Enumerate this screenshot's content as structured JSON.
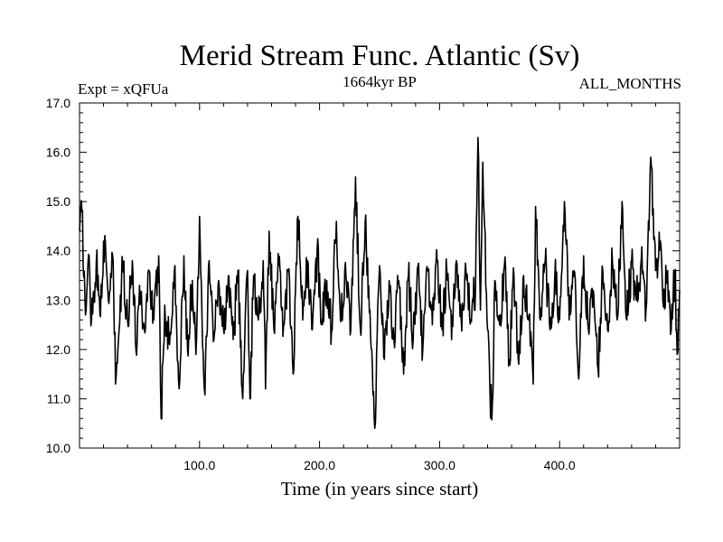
{
  "chart_data": {
    "type": "line",
    "title": "Merid Stream Func. Atlantic (Sv)",
    "subtitle_left": "Expt = xQFUa",
    "subtitle_center": "1664kyr BP",
    "subtitle_right": "ALL_MONTHS",
    "xlabel": "Time (in years since start)",
    "ylabel": "",
    "xlim": [
      0,
      500
    ],
    "ylim": [
      10.0,
      17.0
    ],
    "x_ticks": [
      100,
      200,
      300,
      400
    ],
    "x_tick_labels": [
      "100.0",
      "200.0",
      "300.0",
      "400.0"
    ],
    "y_ticks": [
      10,
      11,
      12,
      13,
      14,
      15,
      16,
      17
    ],
    "y_tick_labels": [
      "10.0",
      "11.0",
      "12.0",
      "13.0",
      "14.0",
      "15.0",
      "16.0",
      "17.0"
    ],
    "series": [
      {
        "name": "Merid Stream Func. Atlantic",
        "color": "#000000",
        "anchors": [
          [
            0,
            14.4
          ],
          [
            2,
            14.8
          ],
          [
            5,
            12.7
          ],
          [
            8,
            13.9
          ],
          [
            10,
            12.6
          ],
          [
            14,
            13.8
          ],
          [
            17,
            12.7
          ],
          [
            20,
            14.2
          ],
          [
            24,
            13.0
          ],
          [
            28,
            13.8
          ],
          [
            30,
            11.3
          ],
          [
            33,
            12.4
          ],
          [
            36,
            13.7
          ],
          [
            40,
            12.6
          ],
          [
            44,
            13.8
          ],
          [
            47,
            12.0
          ],
          [
            50,
            13.3
          ],
          [
            54,
            12.4
          ],
          [
            58,
            13.6
          ],
          [
            62,
            12.6
          ],
          [
            66,
            13.9
          ],
          [
            68,
            10.6
          ],
          [
            71,
            12.9
          ],
          [
            75,
            12.1
          ],
          [
            79,
            13.6
          ],
          [
            83,
            11.2
          ],
          [
            87,
            13.9
          ],
          [
            90,
            12.0
          ],
          [
            94,
            13.4
          ],
          [
            97,
            11.9
          ],
          [
            100,
            14.7
          ],
          [
            104,
            11.2
          ],
          [
            108,
            13.8
          ],
          [
            112,
            12.2
          ],
          [
            116,
            13.4
          ],
          [
            120,
            12.4
          ],
          [
            124,
            13.5
          ],
          [
            128,
            12.2
          ],
          [
            132,
            13.6
          ],
          [
            136,
            11.0
          ],
          [
            140,
            13.6
          ],
          [
            142,
            11.0
          ],
          [
            145,
            13.5
          ],
          [
            149,
            12.6
          ],
          [
            153,
            13.8
          ],
          [
            155,
            11.2
          ],
          [
            158,
            14.4
          ],
          [
            162,
            12.4
          ],
          [
            166,
            13.7
          ],
          [
            170,
            12.5
          ],
          [
            174,
            13.6
          ],
          [
            178,
            11.5
          ],
          [
            182,
            14.7
          ],
          [
            186,
            12.6
          ],
          [
            190,
            13.8
          ],
          [
            194,
            12.4
          ],
          [
            198,
            14.0
          ],
          [
            202,
            12.6
          ],
          [
            206,
            13.4
          ],
          [
            210,
            12.4
          ],
          [
            214,
            14.6
          ],
          [
            218,
            12.6
          ],
          [
            222,
            13.5
          ],
          [
            226,
            12.4
          ],
          [
            230,
            15.5
          ],
          [
            234,
            12.4
          ],
          [
            238,
            14.6
          ],
          [
            242,
            12.8
          ],
          [
            246,
            10.4
          ],
          [
            250,
            13.7
          ],
          [
            254,
            11.8
          ],
          [
            258,
            13.4
          ],
          [
            262,
            12.2
          ],
          [
            266,
            13.4
          ],
          [
            270,
            11.5
          ],
          [
            274,
            13.5
          ],
          [
            278,
            12.2
          ],
          [
            282,
            13.7
          ],
          [
            286,
            12.0
          ],
          [
            290,
            13.6
          ],
          [
            294,
            12.5
          ],
          [
            298,
            13.8
          ],
          [
            302,
            12.4
          ],
          [
            306,
            13.6
          ],
          [
            310,
            12.2
          ],
          [
            314,
            13.8
          ],
          [
            318,
            12.6
          ],
          [
            322,
            13.6
          ],
          [
            326,
            12.6
          ],
          [
            330,
            13.3
          ],
          [
            332,
            16.3
          ],
          [
            334,
            12.8
          ],
          [
            336,
            15.8
          ],
          [
            340,
            12.4
          ],
          [
            342,
            11.1
          ],
          [
            344,
            10.9
          ],
          [
            346,
            13.4
          ],
          [
            350,
            12.5
          ],
          [
            354,
            13.7
          ],
          [
            358,
            11.8
          ],
          [
            362,
            13.5
          ],
          [
            366,
            11.7
          ],
          [
            370,
            13.5
          ],
          [
            374,
            12.6
          ],
          [
            378,
            11.3
          ],
          [
            380,
            14.9
          ],
          [
            384,
            12.6
          ],
          [
            388,
            13.8
          ],
          [
            392,
            12.4
          ],
          [
            396,
            13.5
          ],
          [
            400,
            12.6
          ],
          [
            404,
            15.0
          ],
          [
            408,
            12.6
          ],
          [
            412,
            13.6
          ],
          [
            416,
            11.4
          ],
          [
            420,
            13.9
          ],
          [
            424,
            12.4
          ],
          [
            428,
            13.2
          ],
          [
            432,
            11.6
          ],
          [
            436,
            13.6
          ],
          [
            440,
            12.4
          ],
          [
            444,
            13.8
          ],
          [
            448,
            12.6
          ],
          [
            452,
            15.0
          ],
          [
            456,
            12.6
          ],
          [
            460,
            13.8
          ],
          [
            464,
            13.0
          ],
          [
            468,
            13.8
          ],
          [
            472,
            12.8
          ],
          [
            476,
            15.9
          ],
          [
            480,
            13.6
          ],
          [
            484,
            14.2
          ],
          [
            486,
            13.0
          ],
          [
            490,
            13.6
          ],
          [
            493,
            12.4
          ],
          [
            496,
            13.6
          ],
          [
            498,
            11.9
          ],
          [
            500,
            13.2
          ]
        ]
      }
    ]
  }
}
